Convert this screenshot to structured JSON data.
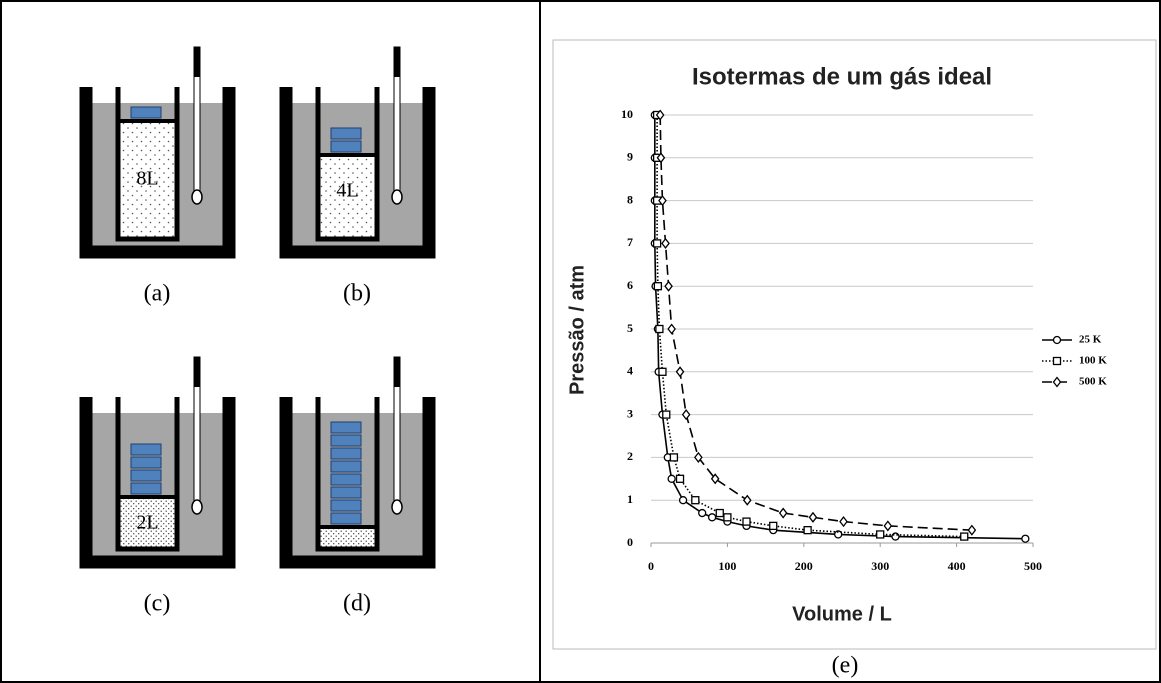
{
  "panels": [
    {
      "label": "(a)",
      "volume": "8L"
    },
    {
      "label": "(b)",
      "volume": "4L"
    },
    {
      "label": "(c)",
      "volume": "2L"
    },
    {
      "label": "(d)"
    }
  ],
  "chart_data": {
    "type": "line",
    "title": "Isotermas de um gás ideal",
    "caption": "(e)",
    "x_label": "Volume / L",
    "y_label": "Pressão / atm",
    "xlim": [
      0,
      500
    ],
    "xticks": [
      0,
      100,
      200,
      300,
      400,
      500
    ],
    "ylim": [
      0,
      10
    ],
    "yticks": [
      0,
      1,
      2,
      3,
      4,
      5,
      6,
      7,
      8,
      9,
      10
    ],
    "grid": true,
    "legend": "right",
    "series": [
      {
        "name": "25 K",
        "color": "#000000",
        "dash": "solid",
        "marker": "circle",
        "x": [
          5,
          5,
          5,
          5,
          6,
          9,
          10,
          15,
          22,
          27,
          42,
          67,
          80,
          100,
          125,
          160,
          245,
          320,
          490
        ],
        "values": [
          10,
          9,
          8,
          7,
          6,
          5,
          4,
          3,
          2,
          1.5,
          1,
          0.7,
          0.6,
          0.5,
          0.4,
          0.3,
          0.2,
          0.15,
          0.1
        ]
      },
      {
        "name": "100 K",
        "color": "#000000",
        "dash": "dotted",
        "marker": "square",
        "x": [
          8,
          8,
          8,
          8,
          9,
          11,
          15,
          20,
          30,
          38,
          58,
          90,
          100,
          125,
          160,
          205,
          300,
          410
        ],
        "values": [
          10,
          9,
          8,
          7,
          6,
          5,
          4,
          3,
          2,
          1.5,
          1,
          0.7,
          0.6,
          0.5,
          0.4,
          0.3,
          0.2,
          0.15
        ]
      },
      {
        "name": "500 K",
        "color": "#000000",
        "dash": "dashed",
        "marker": "diamond",
        "x": [
          12,
          13,
          15,
          19,
          23,
          27,
          38,
          46,
          62,
          84,
          126,
          173,
          212,
          252,
          310,
          420
        ],
        "values": [
          10,
          9,
          8,
          7,
          6,
          5,
          4,
          3,
          2,
          1.5,
          1,
          0.7,
          0.6,
          0.5,
          0.4,
          0.3
        ]
      }
    ]
  }
}
